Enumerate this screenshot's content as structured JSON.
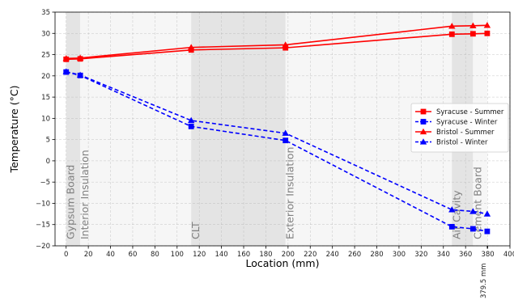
{
  "chart_data": {
    "type": "line",
    "title": "",
    "xlabel": "Location (mm)",
    "ylabel": "Temperature (°C)",
    "xlim": [
      -10,
      400
    ],
    "ylim": [
      -20,
      35
    ],
    "xticks": [
      0,
      20,
      40,
      60,
      80,
      100,
      120,
      140,
      160,
      180,
      200,
      220,
      240,
      260,
      280,
      300,
      320,
      340,
      360,
      380,
      400
    ],
    "yticks": [
      -20,
      -15,
      -10,
      -5,
      0,
      5,
      10,
      15,
      20,
      25,
      30,
      35
    ],
    "grid": true,
    "legend_position": "center-right",
    "special_tick": {
      "value": 379.5,
      "label": "379.5 mm"
    },
    "layer_regions": [
      {
        "name": "Gypsum Board",
        "x": [
          0,
          12.7
        ],
        "shaded": true
      },
      {
        "name": "Interior Insulation",
        "x": [
          12.7,
          112.7
        ],
        "shaded": false
      },
      {
        "name": "CLT",
        "x": [
          112.7,
          197.7
        ],
        "shaded": true
      },
      {
        "name": "Exterior Insulation",
        "x": [
          197.7,
          347.7
        ],
        "shaded": false
      },
      {
        "name": "Air Cavity",
        "x": [
          347.7,
          366.7
        ],
        "shaded": true
      },
      {
        "name": "Cement Board",
        "x": [
          366.7,
          379.5
        ],
        "shaded": false
      }
    ],
    "series": [
      {
        "name": "Syracuse - Summer",
        "color": "#ff0000",
        "marker": "square",
        "linestyle": "solid",
        "x": [
          0,
          12.7,
          112.7,
          197.7,
          347.7,
          366.7,
          379.5
        ],
        "y": [
          23.9,
          24.0,
          26.1,
          26.6,
          29.8,
          29.9,
          30.0
        ]
      },
      {
        "name": "Syracuse - Winter",
        "color": "#0000ff",
        "marker": "square",
        "linestyle": "dashed",
        "x": [
          0,
          12.7,
          112.7,
          197.7,
          347.7,
          366.7,
          379.5
        ],
        "y": [
          20.9,
          20.1,
          8.1,
          4.8,
          -15.5,
          -16.0,
          -16.6
        ]
      },
      {
        "name": "Bristol - Summer",
        "color": "#ff0000",
        "marker": "triangle",
        "linestyle": "solid",
        "x": [
          0,
          12.7,
          112.7,
          197.7,
          347.7,
          366.7,
          379.5
        ],
        "y": [
          24.1,
          24.2,
          26.7,
          27.3,
          31.7,
          31.8,
          31.9
        ]
      },
      {
        "name": "Bristol - Winter",
        "color": "#0000ff",
        "marker": "triangle",
        "linestyle": "dashed",
        "x": [
          0,
          12.7,
          112.7,
          197.7,
          347.7,
          366.7,
          379.5
        ],
        "y": [
          21.0,
          20.2,
          9.5,
          6.5,
          -11.5,
          -11.9,
          -12.5
        ]
      }
    ]
  }
}
